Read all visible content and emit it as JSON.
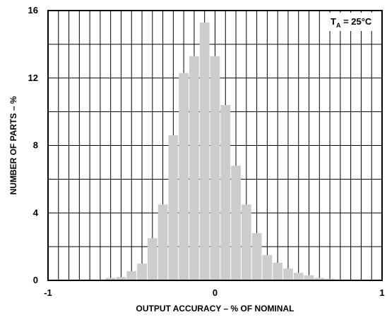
{
  "chart_data": {
    "type": "bar",
    "title": "",
    "xlabel": "OUTPUT ACCURACY – % OF NOMINAL",
    "ylabel": "NUMBER OF PARTS – %",
    "xlim": [
      -1,
      1
    ],
    "ylim": [
      0,
      16
    ],
    "xticks": [
      "-1",
      "0",
      "1"
    ],
    "yticks": [
      "0",
      "4",
      "8",
      "12",
      "16"
    ],
    "grid": true,
    "annotation": {
      "main": "T",
      "sub": "A",
      "rest": " = 25°C"
    },
    "bar_color": "#cccccc",
    "bin_width": 0.0625,
    "x": [
      -0.625,
      -0.5625,
      -0.5,
      -0.4375,
      -0.375,
      -0.3125,
      -0.25,
      -0.1875,
      -0.125,
      -0.0625,
      0,
      0.0625,
      0.125,
      0.1875,
      0.25,
      0.3125,
      0.375,
      0.4375,
      0.5,
      0.5625,
      0.625,
      0.6875,
      0.75
    ],
    "values": [
      0.15,
      0.2,
      0.55,
      1.0,
      2.5,
      4.5,
      8.6,
      12.3,
      13.3,
      15.3,
      13.3,
      10.4,
      6.8,
      4.5,
      2.8,
      1.5,
      1.05,
      0.7,
      0.45,
      0.3,
      0.15,
      0.1,
      0.05
    ]
  }
}
